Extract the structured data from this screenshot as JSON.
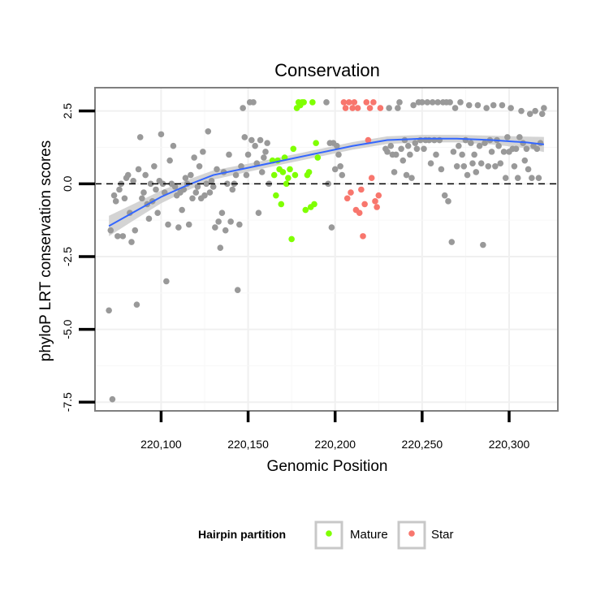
{
  "chart_data": {
    "type": "scatter",
    "title": "Conservation",
    "xlabel": "Genomic Position",
    "ylabel": "phyloP LRT conservation scores",
    "xlim": [
      220062,
      220328
    ],
    "ylim": [
      -7.8,
      3.3
    ],
    "x_ticks": [
      220100,
      220150,
      220200,
      220250,
      220300
    ],
    "x_tick_labels": [
      "220,100",
      "220,150",
      "220,200",
      "220,250",
      "220,300"
    ],
    "y_ticks": [
      2.5,
      0.0,
      -2.5,
      -5.0,
      -7.5
    ],
    "y_tick_labels": [
      "2.5",
      "0.0",
      "-2.5",
      "-5.0",
      "-7.5"
    ],
    "reference_line": {
      "y": 0,
      "style": "dashed"
    },
    "grid": true,
    "colors": {
      "other": "#999999",
      "mature": "#7FFF00",
      "star": "#F8766D",
      "smooth": "#3366FF",
      "band": "#CCCCCC"
    },
    "legend": {
      "title": "Hairpin partition",
      "position": "bottom",
      "items": [
        {
          "label": "Mature",
          "color": "#7FFF00"
        },
        {
          "label": "Star",
          "color": "#F8766D"
        }
      ]
    },
    "series": [
      {
        "name": "Other",
        "points": [
          [
            220070,
            -4.35
          ],
          [
            220071,
            -1.6
          ],
          [
            220072,
            -7.4
          ],
          [
            220073,
            -0.4
          ],
          [
            220074,
            -0.6
          ],
          [
            220075,
            -1.8
          ],
          [
            220076,
            -0.2
          ],
          [
            220077,
            0.0
          ],
          [
            220078,
            -1.8
          ],
          [
            220079,
            -0.5
          ],
          [
            220080,
            0.2
          ],
          [
            220081,
            0.3
          ],
          [
            220082,
            -1.0
          ],
          [
            220083,
            -2.0
          ],
          [
            220084,
            0.1
          ],
          [
            220085,
            -1.6
          ],
          [
            220086,
            -4.15
          ],
          [
            220087,
            0.5
          ],
          [
            220088,
            1.6
          ],
          [
            220089,
            -0.5
          ],
          [
            220090,
            -0.3
          ],
          [
            220091,
            0.3
          ],
          [
            220092,
            -0.7
          ],
          [
            220093,
            -1.2
          ],
          [
            220094,
            0.0
          ],
          [
            220095,
            -0.6
          ],
          [
            220096,
            0.6
          ],
          [
            220097,
            -0.2
          ],
          [
            220098,
            -1.0
          ],
          [
            220099,
            0.1
          ],
          [
            220100,
            1.7
          ],
          [
            220101,
            0.0
          ],
          [
            220102,
            -0.3
          ],
          [
            220103,
            -3.35
          ],
          [
            220104,
            -1.4
          ],
          [
            220105,
            0.8
          ],
          [
            220106,
            0.0
          ],
          [
            220107,
            1.3
          ],
          [
            220108,
            -0.1
          ],
          [
            220109,
            -0.4
          ],
          [
            220110,
            -1.5
          ],
          [
            220111,
            -0.3
          ],
          [
            220112,
            -0.9
          ],
          [
            220113,
            -0.2
          ],
          [
            220114,
            0.2
          ],
          [
            220115,
            0.0
          ],
          [
            220116,
            -1.4
          ],
          [
            220117,
            0.3
          ],
          [
            220118,
            -0.5
          ],
          [
            220119,
            0.9
          ],
          [
            220120,
            -0.3
          ],
          [
            220121,
            -0.1
          ],
          [
            220122,
            0.6
          ],
          [
            220123,
            -0.5
          ],
          [
            220124,
            1.1
          ],
          [
            220125,
            -0.4
          ],
          [
            220126,
            0.0
          ],
          [
            220127,
            1.8
          ],
          [
            220128,
            -0.3
          ],
          [
            220129,
            0.1
          ],
          [
            220130,
            -0.1
          ],
          [
            220131,
            -1.5
          ],
          [
            220132,
            0.5
          ],
          [
            220133,
            -1.3
          ],
          [
            220134,
            -2.2
          ],
          [
            220135,
            -1.0
          ],
          [
            220136,
            0.4
          ],
          [
            220137,
            -1.6
          ],
          [
            220138,
            0.0
          ],
          [
            220139,
            1.0
          ],
          [
            220140,
            -1.3
          ],
          [
            220141,
            -0.2
          ],
          [
            220142,
            0.0
          ],
          [
            220143,
            0.3
          ],
          [
            220144,
            -3.65
          ],
          [
            220145,
            -1.4
          ],
          [
            220146,
            0.6
          ],
          [
            220147,
            2.6
          ],
          [
            220148,
            1.6
          ],
          [
            220149,
            0.3
          ],
          [
            220150,
            1.0
          ],
          [
            220151,
            2.8
          ],
          [
            220152,
            1.5
          ],
          [
            220153,
            2.8
          ],
          [
            220154,
            1.3
          ],
          [
            220155,
            0.7
          ],
          [
            220156,
            -1.0
          ],
          [
            220157,
            1.5
          ],
          [
            220158,
            0.4
          ],
          [
            220159,
            0.9
          ],
          [
            220160,
            1.1
          ],
          [
            220161,
            1.4
          ],
          [
            220162,
            0.0
          ],
          [
            220195,
            2.8
          ],
          [
            220196,
            0.0
          ],
          [
            220197,
            1.4
          ],
          [
            220198,
            -1.5
          ],
          [
            220199,
            1.4
          ],
          [
            220200,
            0.5
          ],
          [
            220201,
            1.3
          ],
          [
            220202,
            1.0
          ],
          [
            220203,
            0.6
          ],
          [
            220204,
            0.3
          ],
          [
            220229,
            1.2
          ],
          [
            220230,
            1.1
          ],
          [
            220231,
            2.6
          ],
          [
            220232,
            1.3
          ],
          [
            220233,
            1.0
          ],
          [
            220234,
            0.4
          ],
          [
            220235,
            1.0
          ],
          [
            220236,
            2.6
          ],
          [
            220237,
            2.8
          ],
          [
            220238,
            1.2
          ],
          [
            220239,
            0.8
          ],
          [
            220240,
            1.5
          ],
          [
            220241,
            0.3
          ],
          [
            220242,
            1.3
          ],
          [
            220243,
            1.0
          ],
          [
            220244,
            0.2
          ],
          [
            220245,
            2.7
          ],
          [
            220246,
            1.4
          ],
          [
            220247,
            1.2
          ],
          [
            220248,
            2.8
          ],
          [
            220249,
            1.5
          ],
          [
            220250,
            2.8
          ],
          [
            220251,
            1.2
          ],
          [
            220252,
            1.5
          ],
          [
            220253,
            2.8
          ],
          [
            220254,
            1.5
          ],
          [
            220255,
            0.7
          ],
          [
            220256,
            2.8
          ],
          [
            220257,
            1.5
          ],
          [
            220258,
            1.0
          ],
          [
            220259,
            2.8
          ],
          [
            220260,
            1.5
          ],
          [
            220261,
            0.5
          ],
          [
            220262,
            2.8
          ],
          [
            220263,
            -0.4
          ],
          [
            220264,
            2.8
          ],
          [
            220265,
            -0.6
          ],
          [
            220266,
            2.8
          ],
          [
            220267,
            -2.0
          ],
          [
            220268,
            1.1
          ],
          [
            220269,
            2.6
          ],
          [
            220270,
            0.6
          ],
          [
            220271,
            1.3
          ],
          [
            220272,
            2.8
          ],
          [
            220273,
            1.0
          ],
          [
            220274,
            0.6
          ],
          [
            220275,
            1.5
          ],
          [
            220276,
            0.3
          ],
          [
            220277,
            2.7
          ],
          [
            220278,
            1.4
          ],
          [
            220279,
            0.7
          ],
          [
            220280,
            1.0
          ],
          [
            220281,
            0.4
          ],
          [
            220282,
            2.7
          ],
          [
            220283,
            1.3
          ],
          [
            220284,
            0.7
          ],
          [
            220285,
            -2.1
          ],
          [
            220286,
            1.4
          ],
          [
            220287,
            2.6
          ],
          [
            220288,
            0.6
          ],
          [
            220289,
            1.5
          ],
          [
            220290,
            1.1
          ],
          [
            220291,
            2.7
          ],
          [
            220292,
            0.6
          ],
          [
            220293,
            1.5
          ],
          [
            220294,
            1.3
          ],
          [
            220295,
            0.7
          ],
          [
            220296,
            2.7
          ],
          [
            220297,
            1.1
          ],
          [
            220298,
            0.2
          ],
          [
            220299,
            1.6
          ],
          [
            220300,
            1.1
          ],
          [
            220301,
            2.6
          ],
          [
            220302,
            1.2
          ],
          [
            220303,
            0.6
          ],
          [
            220304,
            1.2
          ],
          [
            220305,
            0.2
          ],
          [
            220306,
            1.6
          ],
          [
            220307,
            2.5
          ],
          [
            220308,
            1.4
          ],
          [
            220309,
            0.8
          ],
          [
            220310,
            1.2
          ],
          [
            220311,
            0.5
          ],
          [
            220312,
            2.4
          ],
          [
            220313,
            0.2
          ],
          [
            220314,
            1.3
          ],
          [
            220315,
            2.5
          ],
          [
            220316,
            1.2
          ],
          [
            220317,
            0.2
          ],
          [
            220318,
            1.4
          ],
          [
            220319,
            2.4
          ],
          [
            220320,
            2.6
          ]
        ]
      },
      {
        "name": "Mature",
        "points": [
          [
            220164,
            0.8
          ],
          [
            220165,
            0.3
          ],
          [
            220166,
            -0.4
          ],
          [
            220167,
            0.8
          ],
          [
            220168,
            0.5
          ],
          [
            220169,
            -0.7
          ],
          [
            220170,
            0.4
          ],
          [
            220171,
            0.9
          ],
          [
            220172,
            0.0
          ],
          [
            220173,
            0.2
          ],
          [
            220174,
            0.5
          ],
          [
            220175,
            -1.9
          ],
          [
            220176,
            1.2
          ],
          [
            220177,
            0.3
          ],
          [
            220178,
            2.6
          ],
          [
            220179,
            2.8
          ],
          [
            220180,
            2.7
          ],
          [
            220181,
            2.8
          ],
          [
            220182,
            2.8
          ],
          [
            220183,
            -0.9
          ],
          [
            220184,
            0.3
          ],
          [
            220185,
            0.4
          ],
          [
            220186,
            -0.8
          ],
          [
            220187,
            2.8
          ],
          [
            220188,
            -0.7
          ],
          [
            220189,
            1.4
          ],
          [
            220190,
            0.9
          ]
        ]
      },
      {
        "name": "Star",
        "points": [
          [
            220205,
            2.8
          ],
          [
            220206,
            2.6
          ],
          [
            220207,
            -0.5
          ],
          [
            220208,
            2.8
          ],
          [
            220209,
            -0.3
          ],
          [
            220210,
            2.6
          ],
          [
            220211,
            2.8
          ],
          [
            220212,
            -0.9
          ],
          [
            220213,
            2.6
          ],
          [
            220214,
            -1.0
          ],
          [
            220215,
            -0.2
          ],
          [
            220216,
            -1.8
          ],
          [
            220217,
            -0.7
          ],
          [
            220218,
            2.8
          ],
          [
            220219,
            1.5
          ],
          [
            220220,
            2.6
          ],
          [
            220221,
            0.2
          ],
          [
            220222,
            2.8
          ],
          [
            220223,
            -0.6
          ],
          [
            220224,
            -0.8
          ],
          [
            220225,
            -0.4
          ],
          [
            220226,
            2.6
          ]
        ]
      }
    ],
    "smooth": {
      "method": "loess",
      "points": [
        [
          220070,
          -1.45
        ],
        [
          220085,
          -0.95
        ],
        [
          220100,
          -0.45
        ],
        [
          220115,
          -0.05
        ],
        [
          220130,
          0.3
        ],
        [
          220150,
          0.55
        ],
        [
          220170,
          0.8
        ],
        [
          220190,
          1.05
        ],
        [
          220210,
          1.3
        ],
        [
          220230,
          1.5
        ],
        [
          220250,
          1.55
        ],
        [
          220270,
          1.55
        ],
        [
          220290,
          1.5
        ],
        [
          220310,
          1.42
        ],
        [
          220320,
          1.35
        ]
      ],
      "se": [
        0.35,
        0.28,
        0.22,
        0.18,
        0.16,
        0.14,
        0.13,
        0.13,
        0.13,
        0.13,
        0.13,
        0.13,
        0.15,
        0.2,
        0.26
      ]
    }
  }
}
